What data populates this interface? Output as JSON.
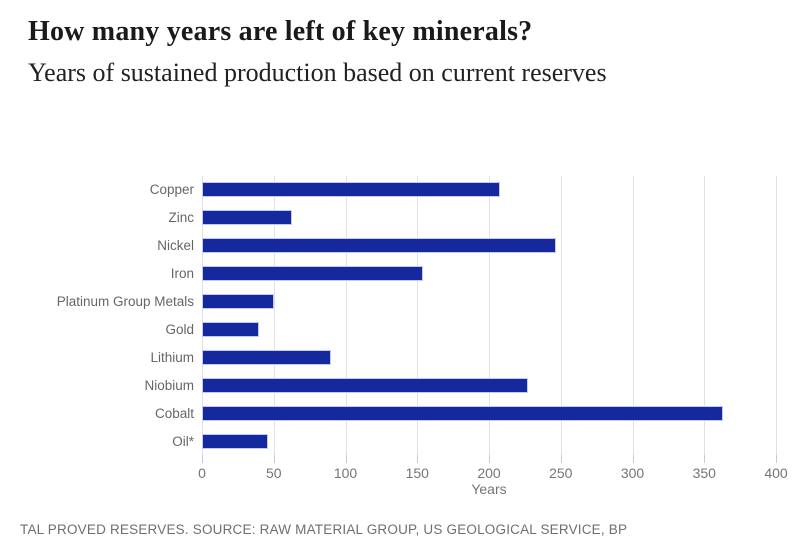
{
  "header": {
    "title": "How many years are left of key minerals?",
    "subtitle": "Years of sustained production based on current reserves"
  },
  "chart_data": {
    "type": "bar",
    "orientation": "horizontal",
    "categories": [
      "Copper",
      "Zinc",
      "Nickel",
      "Iron",
      "Platinum Group Metals",
      "Gold",
      "Lithium",
      "Niobium",
      "Cobalt",
      "Oil*"
    ],
    "values": [
      208,
      63,
      247,
      154,
      50,
      40,
      90,
      227,
      363,
      46
    ],
    "title": "How many years are left of key minerals?",
    "subtitle": "Years of sustained production based on current reserves",
    "xlabel": "Years",
    "ylabel": "",
    "xlim": [
      0,
      400
    ],
    "xticks": [
      0,
      50,
      100,
      150,
      200,
      250,
      300,
      350,
      400
    ],
    "grid": true,
    "legend": "none",
    "bar_color": "#16289e",
    "gridline_color": "#dde1ea",
    "label_color": "#666666",
    "tick_color": "#757575"
  },
  "footer": {
    "source_note": "TAL PROVED RESERVES. SOURCE: RAW MATERIAL GROUP, US GEOLOGICAL SERVICE, BP"
  }
}
